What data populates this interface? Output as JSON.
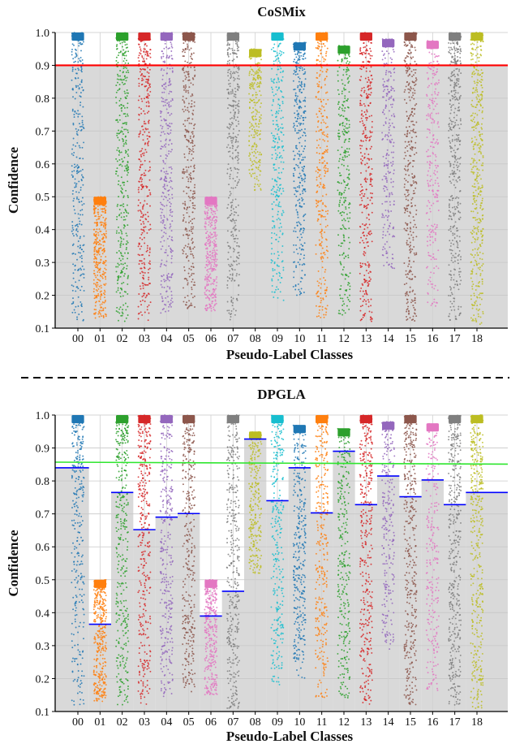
{
  "chart_data": [
    {
      "type": "scatter",
      "title": "CoSMix",
      "xlabel": "Pseudo-Label Classes",
      "ylabel": "Confidence",
      "ylim": [
        0.1,
        1.0
      ],
      "yticks": [
        "0.1",
        "0.2",
        "0.3",
        "0.4",
        "0.5",
        "0.6",
        "0.7",
        "0.8",
        "0.9",
        "1.0"
      ],
      "categories": [
        "00",
        "01",
        "02",
        "03",
        "04",
        "05",
        "06",
        "07",
        "08",
        "09",
        "10",
        "11",
        "12",
        "13",
        "14",
        "15",
        "16",
        "17",
        "18"
      ],
      "class_colors": [
        "#1f77b4",
        "#ff7f0e",
        "#2ca02c",
        "#d62728",
        "#9467bd",
        "#8c564b",
        "#e377c2",
        "#7f7f7f",
        "#bcbd22",
        "#17becf",
        "#1f77b4",
        "#ff7f0e",
        "#2ca02c",
        "#d62728",
        "#9467bd",
        "#8c564b",
        "#e377c2",
        "#7f7f7f",
        "#bcbd22"
      ],
      "confidence_min": [
        0.12,
        0.13,
        0.12,
        0.12,
        0.14,
        0.16,
        0.15,
        0.11,
        0.52,
        0.18,
        0.2,
        0.13,
        0.14,
        0.12,
        0.28,
        0.12,
        0.16,
        0.12,
        0.11
      ],
      "confidence_max": [
        1.0,
        0.5,
        1.0,
        1.0,
        1.0,
        1.0,
        0.5,
        1.0,
        0.95,
        1.0,
        0.97,
        1.0,
        0.96,
        1.0,
        0.98,
        1.0,
        0.975,
        1.0,
        1.0
      ],
      "density": [
        0.7,
        0.85,
        0.85,
        0.85,
        0.8,
        0.85,
        0.8,
        0.9,
        0.6,
        0.7,
        0.8,
        0.75,
        0.7,
        0.85,
        0.6,
        0.9,
        0.6,
        1.0,
        1.0
      ],
      "threshold": {
        "type": "global",
        "value": 0.9,
        "color": "#ff0000"
      }
    },
    {
      "type": "scatter",
      "title": "DPGLA",
      "xlabel": "Pseudo-Label Classes",
      "ylabel": "Confidence",
      "ylim": [
        0.1,
        1.0
      ],
      "yticks": [
        "0.1",
        "0.2",
        "0.3",
        "0.4",
        "0.5",
        "0.6",
        "0.7",
        "0.8",
        "0.9",
        "1.0"
      ],
      "categories": [
        "00",
        "01",
        "02",
        "03",
        "04",
        "05",
        "06",
        "07",
        "08",
        "09",
        "10",
        "11",
        "12",
        "13",
        "14",
        "15",
        "16",
        "17",
        "18"
      ],
      "class_colors": [
        "#1f77b4",
        "#ff7f0e",
        "#2ca02c",
        "#d62728",
        "#9467bd",
        "#8c564b",
        "#e377c2",
        "#7f7f7f",
        "#bcbd22",
        "#17becf",
        "#1f77b4",
        "#ff7f0e",
        "#2ca02c",
        "#d62728",
        "#9467bd",
        "#8c564b",
        "#e377c2",
        "#7f7f7f",
        "#bcbd22"
      ],
      "confidence_min": [
        0.12,
        0.13,
        0.12,
        0.12,
        0.14,
        0.16,
        0.15,
        0.11,
        0.52,
        0.18,
        0.2,
        0.13,
        0.14,
        0.12,
        0.28,
        0.12,
        0.16,
        0.12,
        0.11
      ],
      "confidence_max": [
        1.0,
        0.5,
        1.0,
        1.0,
        1.0,
        1.0,
        0.5,
        1.0,
        0.95,
        1.0,
        0.97,
        1.0,
        0.96,
        1.0,
        0.98,
        1.0,
        0.975,
        1.0,
        1.0
      ],
      "density": [
        0.7,
        0.85,
        0.85,
        0.85,
        0.8,
        0.85,
        0.8,
        0.9,
        0.6,
        0.7,
        0.8,
        0.75,
        0.7,
        0.85,
        0.6,
        0.9,
        0.6,
        1.0,
        1.0
      ],
      "class_thresholds": [
        0.84,
        0.365,
        0.765,
        0.652,
        0.69,
        0.701,
        0.39,
        0.465,
        0.927,
        0.74,
        0.84,
        0.703,
        0.89,
        0.728,
        0.815,
        0.752,
        0.803,
        0.728,
        0.765
      ],
      "class_threshold_color": "#0000ff",
      "global_line": {
        "from": 0.857,
        "to": 0.851,
        "color": "#2ee62e"
      }
    }
  ]
}
